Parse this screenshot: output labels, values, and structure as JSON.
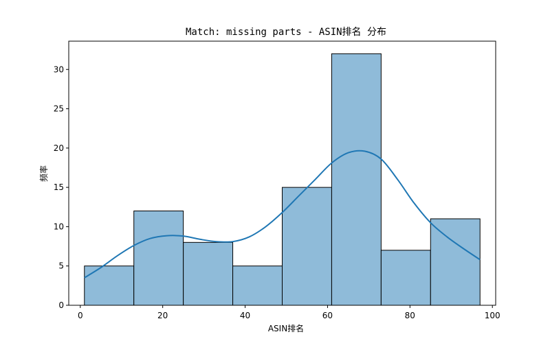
{
  "chart_data": {
    "type": "bar",
    "chart_kind": "histogram-with-kde",
    "title": "Match: missing parts - ASIN排名 分布",
    "xlabel": "ASIN排名",
    "ylabel": "频率",
    "xlim": [
      -2.8,
      100.8
    ],
    "ylim": [
      0,
      33.6
    ],
    "xticks": [
      0,
      20,
      40,
      60,
      80,
      100
    ],
    "yticks": [
      0,
      5,
      10,
      15,
      20,
      25,
      30
    ],
    "bin_edges": [
      1,
      13,
      25,
      37,
      49,
      61,
      73,
      85,
      97
    ],
    "values": [
      5,
      12,
      8,
      5,
      15,
      32,
      7,
      11
    ],
    "kde": {
      "x": [
        1,
        5,
        9,
        13,
        17,
        21,
        25,
        29,
        33,
        37,
        41,
        45,
        49,
        53,
        57,
        61,
        65,
        69,
        73,
        77,
        81,
        85,
        89,
        93,
        97
      ],
      "y": [
        3.5,
        4.8,
        6.3,
        7.6,
        8.5,
        8.85,
        8.8,
        8.4,
        8.1,
        8.1,
        8.7,
        10.0,
        11.8,
        13.9,
        16.0,
        18.1,
        19.4,
        19.6,
        18.6,
        16.0,
        13.0,
        10.5,
        8.7,
        7.2,
        5.8
      ]
    },
    "grid": false,
    "legend": "none",
    "colors": {
      "bar_fill": "#8fbbd9",
      "bar_edge": "#000000",
      "kde_line": "#1f77b4",
      "axes": "#000000"
    }
  }
}
